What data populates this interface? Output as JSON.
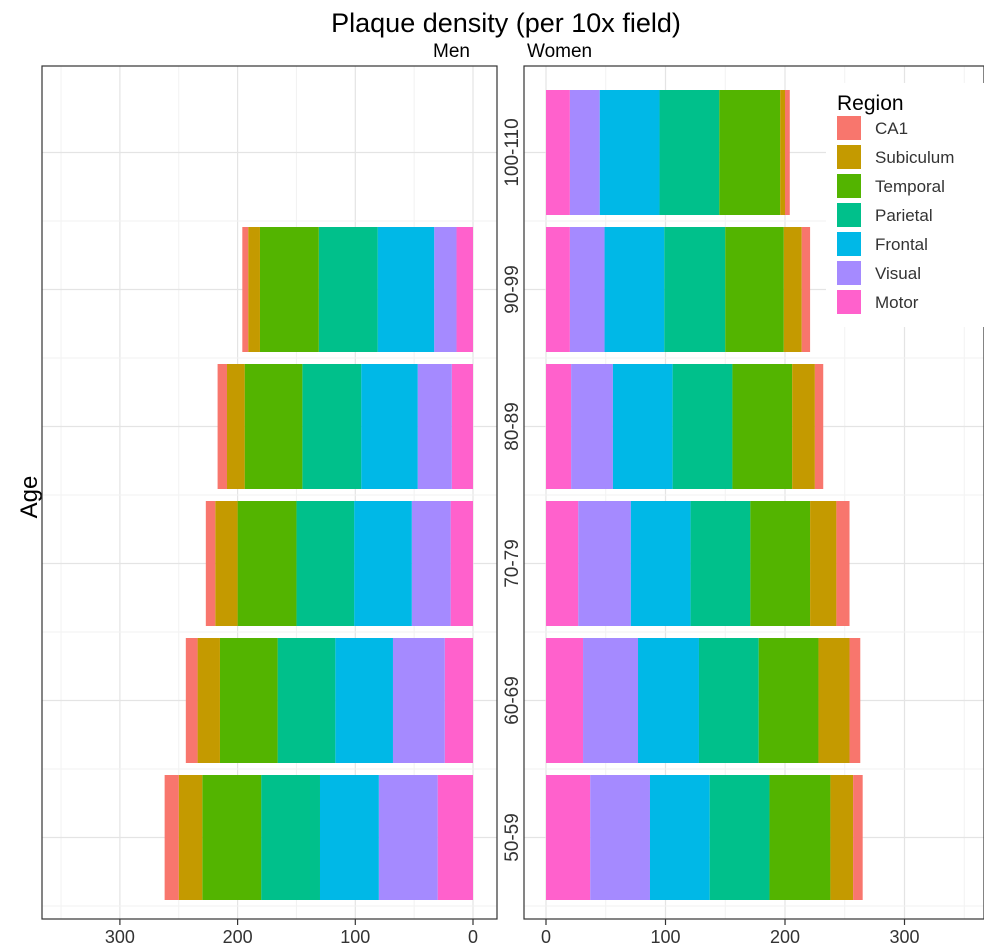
{
  "chart_data": {
    "type": "bar",
    "orientation": "horizontal",
    "stacked": true,
    "title": "Plaque density (per 10x field)",
    "ylabel": "Age",
    "categories": [
      "50-59",
      "60-69",
      "70-79",
      "80-89",
      "90-99",
      "100-110"
    ],
    "panels": [
      {
        "label": "Men",
        "direction": "reversed",
        "xlim": [
          0,
          365
        ],
        "ticks": [
          300,
          200,
          100,
          0
        ],
        "series": [
          {
            "name": "Motor",
            "color": "#FF61CC",
            "values": [
              30,
              24,
              19,
              18,
              14,
              null
            ]
          },
          {
            "name": "Visual",
            "color": "#A58AFF",
            "values": [
              50,
              44,
              33,
              29,
              19,
              null
            ]
          },
          {
            "name": "Frontal",
            "color": "#00B8E7",
            "values": [
              50,
              49,
              49,
              48,
              48,
              null
            ]
          },
          {
            "name": "Parietal",
            "color": "#00C08B",
            "values": [
              50,
              49,
              49,
              50,
              50,
              null
            ]
          },
          {
            "name": "Temporal",
            "color": "#53B400",
            "values": [
              50,
              49,
              50,
              49,
              50,
              null
            ]
          },
          {
            "name": "Subiculum",
            "color": "#C49A00",
            "values": [
              20,
              19,
              19,
              15,
              10,
              null
            ]
          },
          {
            "name": "CA1",
            "color": "#F8766D",
            "values": [
              12,
              10,
              8,
              8,
              5,
              null
            ]
          }
        ]
      },
      {
        "label": "Women",
        "direction": "normal",
        "xlim": [
          0,
          355
        ],
        "ticks": [
          0,
          100,
          200,
          300
        ],
        "series": [
          {
            "name": "Motor",
            "color": "#FF61CC",
            "values": [
              37,
              31,
              27,
              21,
              20,
              20
            ]
          },
          {
            "name": "Visual",
            "color": "#A58AFF",
            "values": [
              50,
              46,
              44,
              35,
              29,
              25
            ]
          },
          {
            "name": "Frontal",
            "color": "#00B8E7",
            "values": [
              50,
              51,
              50,
              50,
              50,
              50
            ]
          },
          {
            "name": "Parietal",
            "color": "#00C08B",
            "values": [
              50,
              50,
              50,
              50,
              51,
              50
            ]
          },
          {
            "name": "Temporal",
            "color": "#53B400",
            "values": [
              51,
              50,
              50,
              50,
              49,
              51
            ]
          },
          {
            "name": "Subiculum",
            "color": "#C49A00",
            "values": [
              19,
              26,
              22,
              19,
              15,
              4
            ]
          },
          {
            "name": "CA1",
            "color": "#F8766D",
            "values": [
              8,
              9,
              11,
              7,
              7,
              4
            ]
          }
        ]
      }
    ],
    "legend": {
      "title": "Region",
      "position": "top-right",
      "entries": [
        {
          "name": "CA1",
          "color": "#F8766D"
        },
        {
          "name": "Subiculum",
          "color": "#C49A00"
        },
        {
          "name": "Temporal",
          "color": "#53B400"
        },
        {
          "name": "Parietal",
          "color": "#00C08B"
        },
        {
          "name": "Frontal",
          "color": "#00B8E7"
        },
        {
          "name": "Visual",
          "color": "#A58AFF"
        },
        {
          "name": "Motor",
          "color": "#FF61CC"
        }
      ]
    },
    "grid": true
  }
}
